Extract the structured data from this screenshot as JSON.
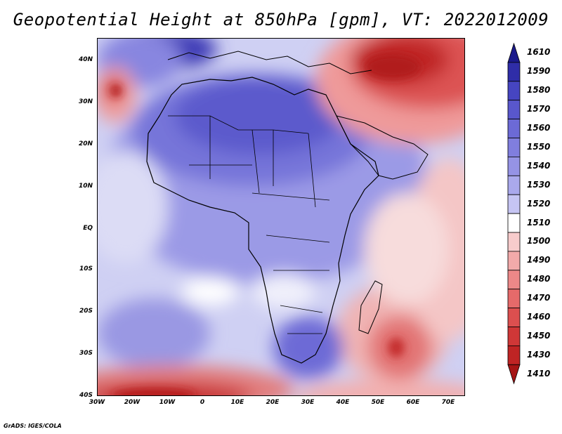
{
  "title": "Geopotential Height at 850hPa [gpm], VT: 2022012009",
  "credit": "GrADS: IGES/COLA",
  "map": {
    "lat_labels": [
      "40N",
      "30N",
      "20N",
      "10N",
      "EQ",
      "10S",
      "20S",
      "30S",
      "40S"
    ],
    "lon_labels": [
      "30W",
      "20W",
      "10W",
      "0",
      "10E",
      "20E",
      "30E",
      "40E",
      "50E",
      "60E",
      "70E"
    ],
    "extent": {
      "lon_min": -30,
      "lon_max": 75,
      "lat_min": -40,
      "lat_max": 45
    }
  },
  "colorbar": {
    "levels": [
      "1610",
      "1590",
      "1580",
      "1570",
      "1560",
      "1550",
      "1540",
      "1530",
      "1520",
      "1510",
      "1500",
      "1490",
      "1480",
      "1470",
      "1460",
      "1450",
      "1430",
      "1410"
    ],
    "colors": [
      "#1b1a8c",
      "#2f2da8",
      "#4645c1",
      "#5957cc",
      "#6c6ad6",
      "#807ede",
      "#9593e5",
      "#aaa9ec",
      "#c6c5f3",
      "#ffffff",
      "#f7cccc",
      "#f2aaaa",
      "#ec8888",
      "#e56a6a",
      "#dc4f4f",
      "#cf3737",
      "#bf2424",
      "#a51515"
    ]
  }
}
